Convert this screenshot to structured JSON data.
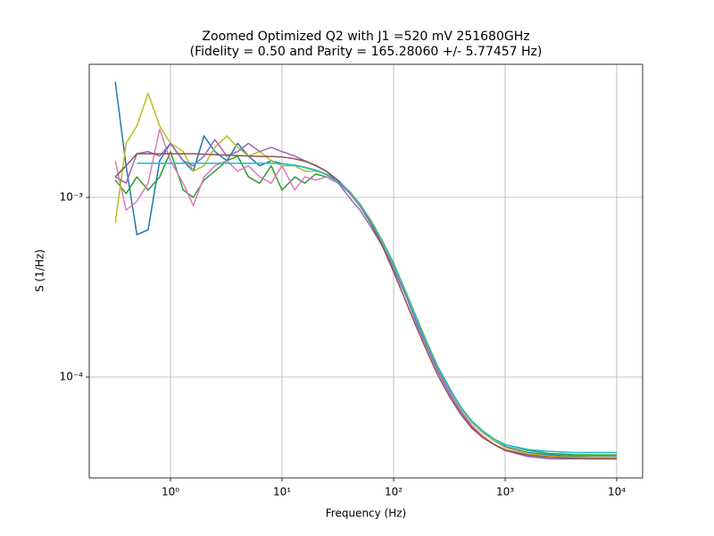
{
  "chart_data": {
    "type": "line",
    "title": "Zoomed Optimized Q2 with J1 =520 mV 251680GHz",
    "subtitle": "(Fidelity = 0.50 and Parity = 165.28060 +/- 5.77457 Hz)",
    "x_label": "Frequency (Hz)",
    "y_label": "S (1/Hz)",
    "x_scale": "log",
    "y_scale": "log",
    "grid": true,
    "xlim": [
      0.187,
      17060
    ],
    "ylim": [
      2.74e-05,
      0.00551
    ],
    "xticks": [
      {
        "value": 1,
        "label": "10⁰"
      },
      {
        "value": 10,
        "label": "10¹"
      },
      {
        "value": 100,
        "label": "10²"
      },
      {
        "value": 1000,
        "label": "10³"
      },
      {
        "value": 10000,
        "label": "10⁴"
      }
    ],
    "yticks": [
      {
        "value": 0.0001,
        "label": "10⁻⁴"
      },
      {
        "value": 0.001,
        "label": "10⁻³"
      }
    ],
    "x": [
      0.32,
      0.4,
      0.5,
      0.63,
      0.8,
      1,
      1.3,
      1.6,
      2,
      2.5,
      3.2,
      4,
      5,
      6.3,
      8,
      10,
      13,
      16,
      20,
      25,
      32,
      40,
      50,
      63,
      80,
      100,
      130,
      160,
      200,
      250,
      320,
      400,
      500,
      630,
      800,
      1000,
      1600,
      2500,
      4000,
      6300,
      10000
    ],
    "series": [
      {
        "color": "#1f77b4",
        "values": [
          0.0044,
          0.0015,
          0.00062,
          0.00066,
          0.0016,
          0.002,
          0.0016,
          0.0014,
          0.0022,
          0.0018,
          0.0016,
          0.002,
          0.0017,
          0.0015,
          0.0016,
          0.00154,
          0.00151,
          0.00147,
          0.00142,
          0.00134,
          0.00121,
          0.00108,
          0.00091,
          0.00073,
          0.00056,
          0.00042,
          0.00029,
          0.00021,
          0.000152,
          0.000112,
          8.4e-05,
          6.7e-05,
          5.6e-05,
          4.9e-05,
          4.4e-05,
          4.1e-05,
          3.8e-05,
          3.68e-05,
          3.63e-05,
          3.6e-05,
          3.6e-05
        ]
      },
      {
        "color": "#2ca02c",
        "values": [
          0.00125,
          0.00105,
          0.0013,
          0.0011,
          0.0013,
          0.0018,
          0.0011,
          0.001,
          0.00125,
          0.0014,
          0.0016,
          0.0017,
          0.0013,
          0.0012,
          0.0015,
          0.0011,
          0.0013,
          0.0012,
          0.00135,
          0.0013,
          0.0012,
          0.00108,
          0.00092,
          0.00074,
          0.00057,
          0.00043,
          0.000295,
          0.000215,
          0.000155,
          0.000114,
          8.6e-05,
          6.8e-05,
          5.7e-05,
          5e-05,
          4.5e-05,
          4.2e-05,
          3.9e-05,
          3.75e-05,
          3.7e-05,
          3.68e-05,
          3.68e-05
        ]
      },
      {
        "color": "#e377c2",
        "values": [
          0.0016,
          0.00085,
          0.00095,
          0.0012,
          0.0024,
          0.0016,
          0.0012,
          0.0009,
          0.0013,
          0.0015,
          0.0016,
          0.0014,
          0.0015,
          0.0013,
          0.0012,
          0.0015,
          0.0011,
          0.0013,
          0.00125,
          0.0013,
          0.0012,
          0.00106,
          0.00089,
          0.00071,
          0.00054,
          0.00041,
          0.00028,
          0.000205,
          0.000148,
          0.00011,
          8.2e-05,
          6.5e-05,
          5.4e-05,
          4.7e-05,
          4.2e-05,
          3.95e-05,
          3.7e-05,
          3.6e-05,
          3.55e-05,
          3.55e-05,
          3.55e-05
        ]
      },
      {
        "color": "#bcbd22",
        "values": [
          0.00072,
          0.002,
          0.0025,
          0.0038,
          0.0025,
          0.002,
          0.0018,
          0.0014,
          0.0015,
          0.0019,
          0.0022,
          0.0019,
          0.0017,
          0.0018,
          0.0016,
          0.0015,
          0.0015,
          0.0014,
          0.0014,
          0.00135,
          0.00122,
          0.00109,
          0.00092,
          0.00074,
          0.00057,
          0.000425,
          0.000295,
          0.000212,
          0.000154,
          0.000113,
          8.5e-05,
          6.7e-05,
          5.6e-05,
          4.9e-05,
          4.4e-05,
          4.05e-05,
          3.75e-05,
          3.62e-05,
          3.58e-05,
          3.57e-05,
          3.57e-05
        ]
      },
      {
        "color": "#9467bd",
        "values": [
          0.0013,
          0.0012,
          0.00175,
          0.0018,
          0.0017,
          0.002,
          0.0016,
          0.0015,
          0.0017,
          0.0021,
          0.0017,
          0.0018,
          0.002,
          0.0018,
          0.0019,
          0.0018,
          0.0017,
          0.0016,
          0.0015,
          0.0014,
          0.0012,
          0.001,
          0.00085,
          0.00068,
          0.00053,
          0.0004,
          0.00028,
          0.0002,
          0.000145,
          0.000107,
          8e-05,
          6.4e-05,
          5.3e-05,
          4.6e-05,
          4.2e-05,
          3.9e-05,
          3.6e-05,
          3.5e-05,
          3.5e-05,
          3.5e-05,
          3.5e-05
        ]
      },
      {
        "color": "#8c564b",
        "values": [
          0.0013,
          0.0015,
          0.00175,
          0.00175,
          0.00175,
          0.00175,
          0.00175,
          0.00175,
          0.00174,
          0.00173,
          0.00172,
          0.00171,
          0.0017,
          0.00169,
          0.00169,
          0.00168,
          0.00164,
          0.00159,
          0.00151,
          0.0014,
          0.00124,
          0.00107,
          0.00091,
          0.00071,
          0.00053,
          0.000385,
          0.00026,
          0.00019,
          0.000138,
          0.000102,
          7.7e-05,
          6.2e-05,
          5.2e-05,
          4.6e-05,
          4.2e-05,
          3.9e-05,
          3.67e-05,
          3.57e-05,
          3.53e-05,
          3.5e-05,
          3.5e-05
        ]
      },
      {
        "color": "#17becf",
        "values": [
          null,
          null,
          0.00155,
          0.00155,
          0.00155,
          0.00155,
          0.00155,
          0.00155,
          0.00155,
          0.00155,
          0.00155,
          0.00155,
          0.00155,
          0.00155,
          0.00155,
          0.00154,
          0.00151,
          0.00147,
          0.00142,
          0.00134,
          0.00121,
          0.00108,
          0.00091,
          0.00073,
          0.00056,
          0.00042,
          0.00029,
          0.00021,
          0.000152,
          0.000112,
          8.5e-05,
          6.8e-05,
          5.7e-05,
          5e-05,
          4.5e-05,
          4.2e-05,
          3.95e-05,
          3.85e-05,
          3.8e-05,
          3.8e-05,
          3.8e-05
        ]
      }
    ]
  }
}
